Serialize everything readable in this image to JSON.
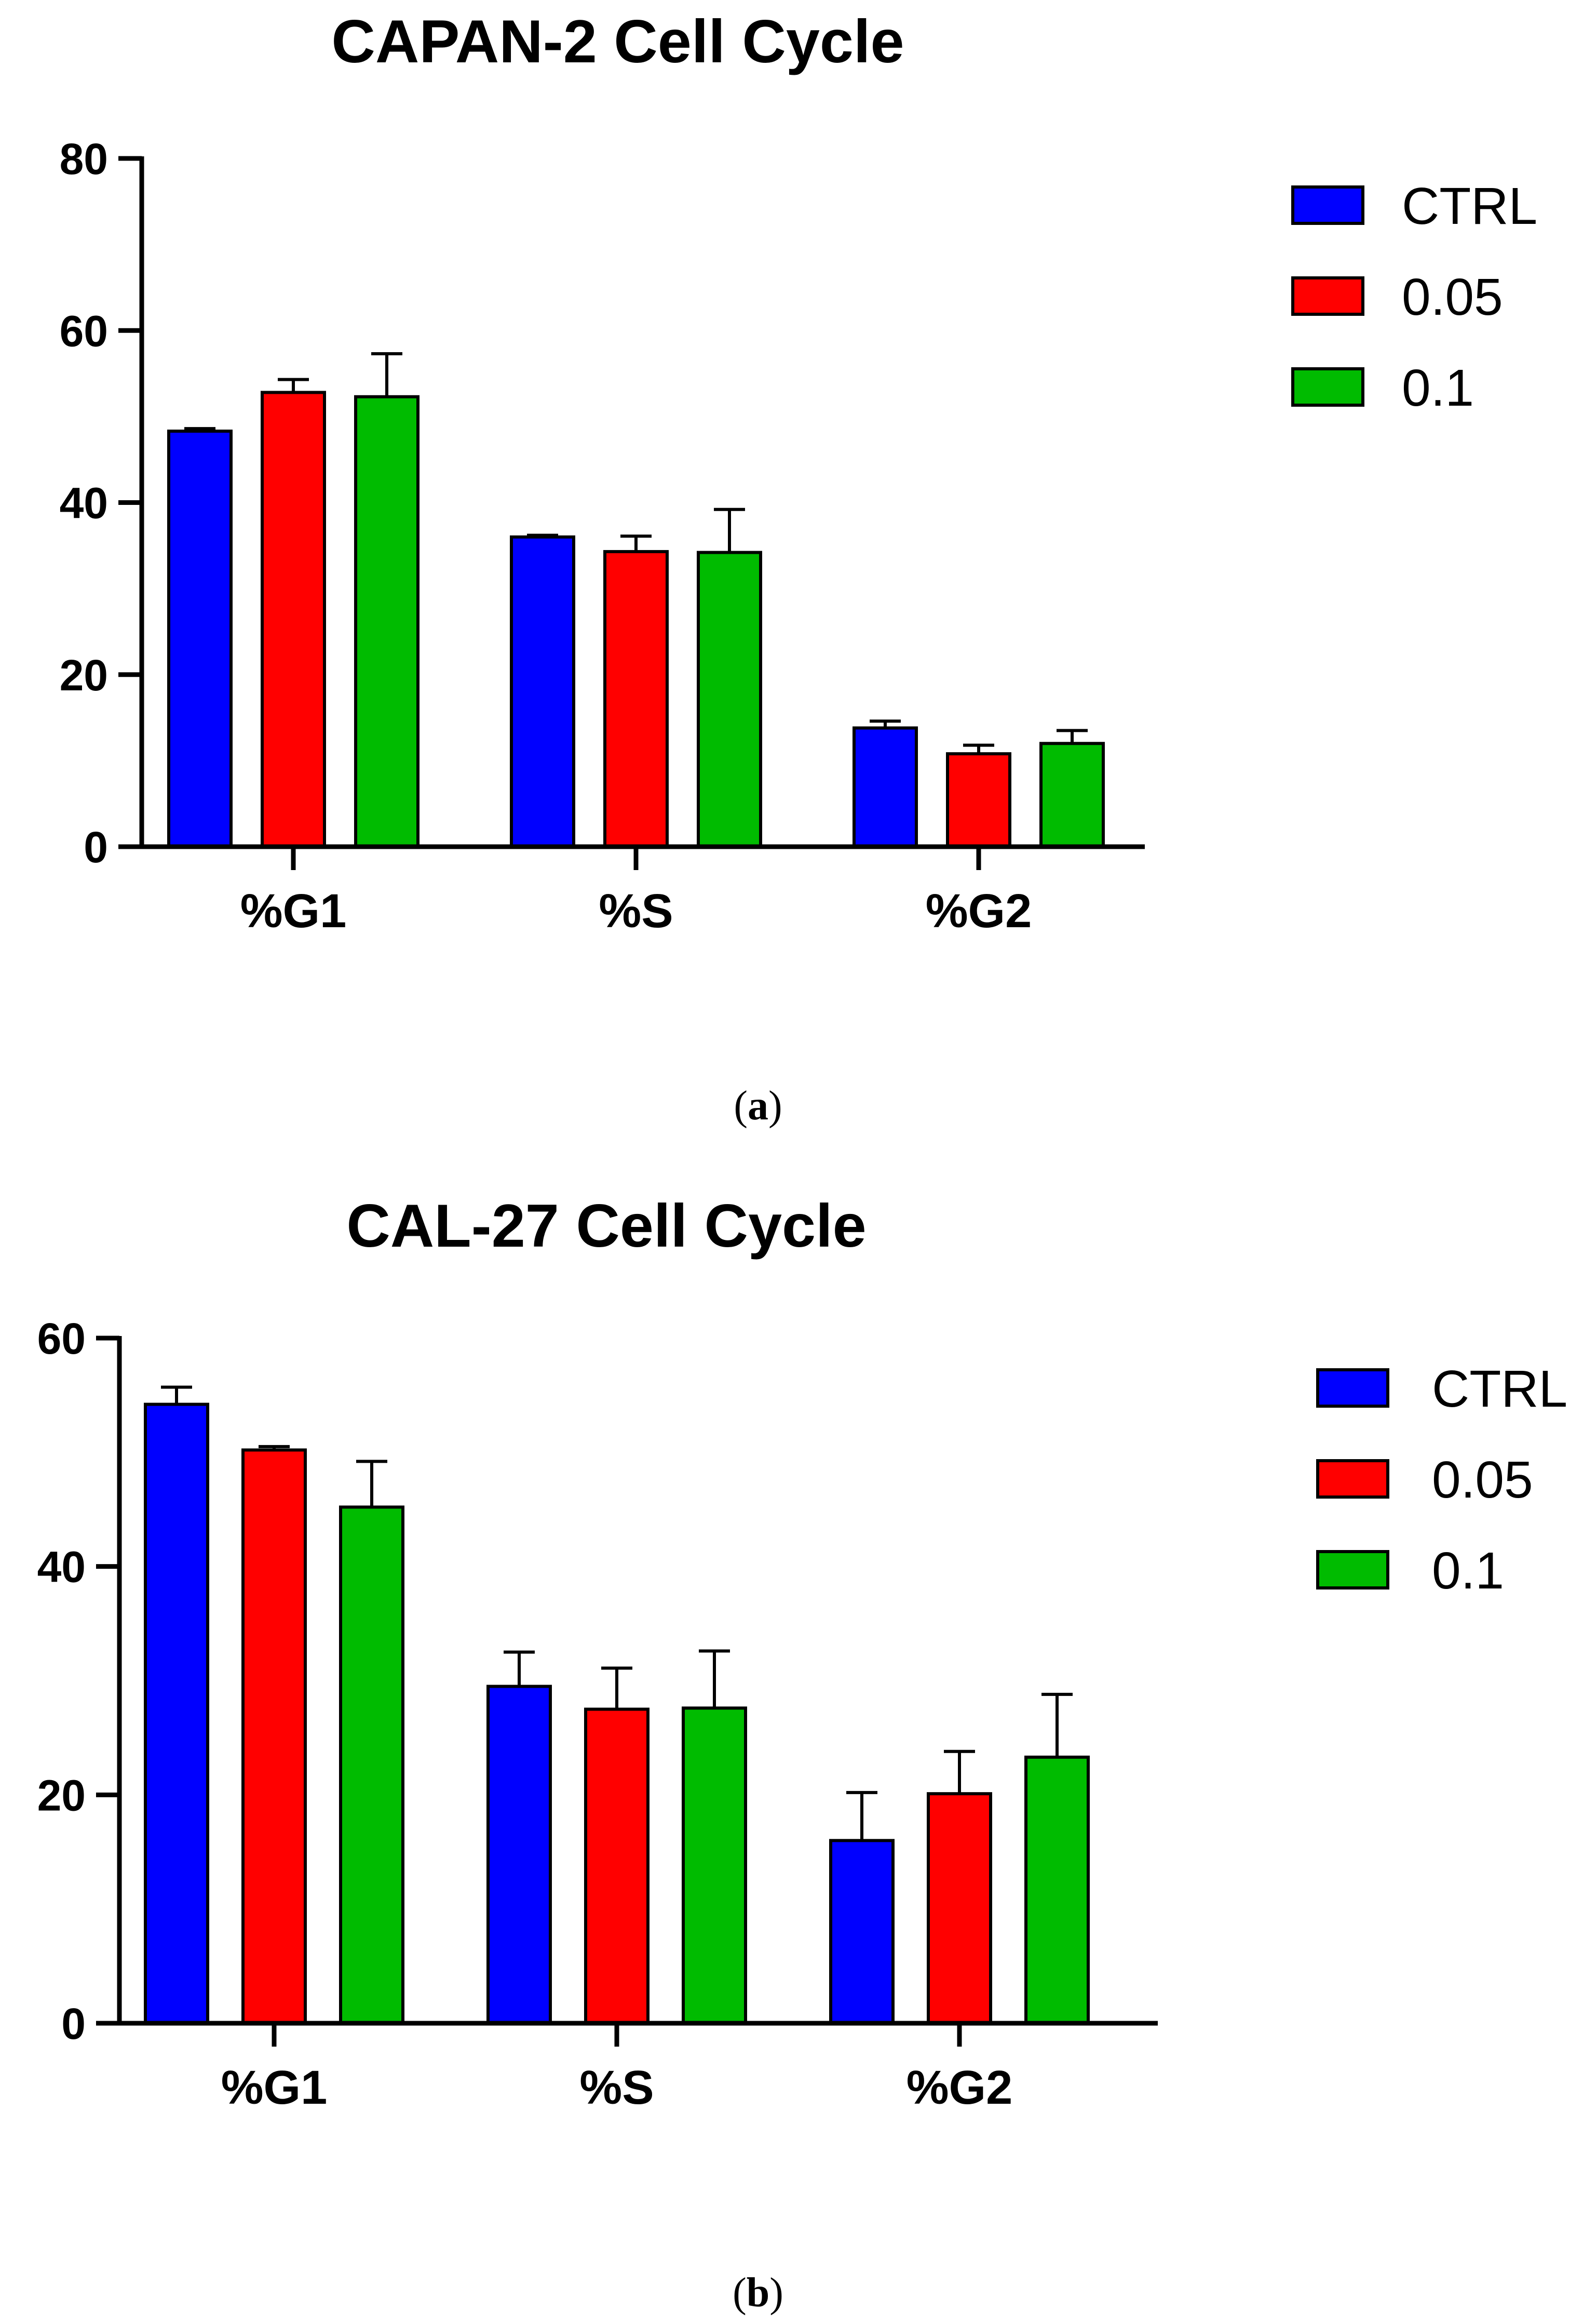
{
  "captions": [
    {
      "open": "(",
      "letter": "a",
      "close": ")"
    },
    {
      "open": "(",
      "letter": "b",
      "close": ")"
    }
  ],
  "chart_data": [
    {
      "type": "bar",
      "title": "CAPAN-2 Cell Cycle",
      "xlabel": "",
      "ylabel": "",
      "categories": [
        "%G1",
        "%S",
        "%G2"
      ],
      "ylim": [
        0,
        80
      ],
      "yticks": [
        0,
        20,
        40,
        60,
        80
      ],
      "grid": false,
      "legend_position": "right",
      "series": [
        {
          "name": "CTRL",
          "color": "#0000ff",
          "values": [
            48.3,
            36.0,
            13.8
          ],
          "errors": [
            0.3,
            0.2,
            0.8
          ]
        },
        {
          "name": "0.05",
          "color": "#ff0000",
          "values": [
            52.8,
            34.3,
            10.8
          ],
          "errors": [
            1.5,
            1.8,
            1.0
          ]
        },
        {
          "name": "0.1",
          "color": "#00bb00",
          "values": [
            52.3,
            34.2,
            12.0
          ],
          "errors": [
            5.0,
            5.0,
            1.5
          ]
        }
      ]
    },
    {
      "type": "bar",
      "title": "CAL-27 Cell Cycle",
      "xlabel": "",
      "ylabel": "",
      "categories": [
        "%G1",
        "%S",
        "%G2"
      ],
      "ylim": [
        0,
        60
      ],
      "yticks": [
        0,
        20,
        40,
        60
      ],
      "grid": false,
      "legend_position": "right",
      "series": [
        {
          "name": "CTRL",
          "color": "#0000ff",
          "values": [
            54.2,
            29.5,
            16.0
          ],
          "errors": [
            1.5,
            3.0,
            4.2
          ]
        },
        {
          "name": "0.05",
          "color": "#ff0000",
          "values": [
            50.2,
            27.5,
            20.1
          ],
          "errors": [
            0.3,
            3.6,
            3.7
          ]
        },
        {
          "name": "0.1",
          "color": "#00bb00",
          "values": [
            45.2,
            27.6,
            23.3
          ],
          "errors": [
            4.0,
            5.0,
            5.5
          ]
        }
      ]
    }
  ]
}
